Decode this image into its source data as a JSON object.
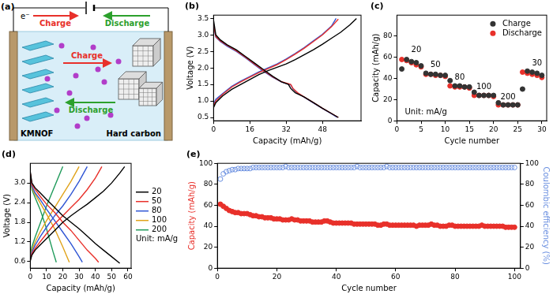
{
  "diagram": {
    "title": "(a)",
    "electron": "e⁻",
    "top_arrows": [
      "Charge",
      "Discharge"
    ],
    "ion_arrows": [
      "Charge",
      "Discharge"
    ],
    "left_electrode": "KMNOF",
    "right_electrode": "Hard carbon"
  },
  "chart_data": [
    {
      "type": "line",
      "title": "(b)",
      "xlabel": "Capacity (mAh/g)",
      "ylabel": "Voltage (V)",
      "xlim": [
        0,
        65
      ],
      "xticks": [
        0,
        16,
        32,
        48
      ],
      "ylim": [
        0.4,
        3.6
      ],
      "yticks": [
        0.5,
        {
          "value": 1,
          "label": "1.0"
        },
        1.5,
        {
          "value": 2,
          "label": "2.0"
        },
        2.5,
        {
          "value": 3,
          "label": "3.0"
        },
        3.5
      ],
      "grid": false,
      "series": [
        {
          "color": "#000000",
          "x": [
            0,
            1,
            4,
            8,
            12,
            16,
            20,
            24,
            28,
            32,
            36,
            40,
            44,
            48,
            52,
            56,
            60,
            63,
            null,
            0,
            1,
            3,
            6,
            10,
            14,
            18,
            22,
            26,
            30,
            33,
            34,
            36,
            40,
            44,
            48,
            52,
            55
          ],
          "values": [
            0.8,
            0.95,
            1.15,
            1.35,
            1.5,
            1.65,
            1.8,
            1.92,
            2.02,
            2.12,
            2.25,
            2.4,
            2.55,
            2.72,
            2.9,
            3.08,
            3.3,
            3.5,
            null,
            3.45,
            3.0,
            2.85,
            2.7,
            2.55,
            2.35,
            2.15,
            1.95,
            1.75,
            1.58,
            1.5,
            1.38,
            1.25,
            1.12,
            0.95,
            0.78,
            0.62,
            0.5
          ]
        },
        {
          "color": "#e8302a",
          "x": [
            0,
            1,
            4,
            8,
            12,
            16,
            20,
            24,
            28,
            32,
            36,
            40,
            44,
            48,
            52,
            55,
            null,
            0,
            1,
            3,
            6,
            10,
            14,
            18,
            22,
            26,
            30,
            34,
            35,
            37,
            40,
            44,
            48,
            52,
            55
          ],
          "values": [
            0.85,
            1.0,
            1.2,
            1.42,
            1.58,
            1.72,
            1.86,
            1.98,
            2.1,
            2.25,
            2.42,
            2.6,
            2.8,
            3.0,
            3.25,
            3.48,
            null,
            3.3,
            2.95,
            2.82,
            2.68,
            2.52,
            2.33,
            2.12,
            1.92,
            1.73,
            1.58,
            1.5,
            1.38,
            1.25,
            1.12,
            0.95,
            0.78,
            0.62,
            0.5
          ]
        },
        {
          "color": "#2f55d4",
          "x": [
            0,
            1,
            4,
            8,
            12,
            16,
            20,
            24,
            28,
            32,
            36,
            40,
            44,
            48,
            52,
            54,
            null,
            0,
            1,
            3,
            6,
            10,
            14,
            18,
            22,
            26,
            30,
            34,
            35,
            37,
            40,
            44,
            48,
            52,
            54.5
          ],
          "values": [
            0.9,
            1.05,
            1.22,
            1.44,
            1.6,
            1.74,
            1.88,
            2.0,
            2.12,
            2.27,
            2.44,
            2.62,
            2.82,
            3.02,
            3.27,
            3.5,
            null,
            3.28,
            2.93,
            2.8,
            2.66,
            2.5,
            2.31,
            2.1,
            1.9,
            1.72,
            1.57,
            1.49,
            1.37,
            1.24,
            1.11,
            0.94,
            0.77,
            0.61,
            0.5
          ]
        }
      ]
    },
    {
      "type": "scatter",
      "title": "(c)",
      "xlabel": "Cycle number",
      "ylabel": "Capacity (mAh/g)",
      "x": [
        1,
        2,
        3,
        4,
        5,
        6,
        7,
        8,
        9,
        10,
        11,
        12,
        13,
        14,
        15,
        16,
        17,
        18,
        19,
        20,
        21,
        22,
        23,
        24,
        25,
        26,
        27,
        28,
        29,
        30
      ],
      "xlim": [
        0,
        31
      ],
      "xticks": [
        0,
        5,
        10,
        15,
        20,
        25,
        30
      ],
      "ylim": [
        0,
        100
      ],
      "yticks": [
        0,
        20,
        40,
        60,
        80
      ],
      "grid": false,
      "legend": "upper right",
      "marker": "circle",
      "series": [
        {
          "name": "Charge",
          "color": "#333333",
          "values": [
            49,
            58,
            56,
            55,
            52,
            45,
            44,
            44,
            43,
            43,
            38,
            33,
            33,
            32,
            32,
            27,
            24,
            24,
            24,
            24,
            17,
            15,
            15,
            15,
            15,
            30,
            47,
            46,
            45,
            43
          ]
        },
        {
          "name": "Discharge",
          "color": "#e8302a",
          "values": [
            58,
            57,
            55,
            53,
            51,
            44,
            44,
            43,
            43,
            42,
            33,
            32,
            32,
            32,
            31,
            24,
            24,
            24,
            24,
            23,
            15,
            15,
            15,
            15,
            15,
            46,
            45,
            44,
            43,
            41
          ]
        }
      ],
      "annotations": [
        {
          "text": "20",
          "x": 4,
          "y": 67
        },
        {
          "text": "50",
          "x": 8,
          "y": 53
        },
        {
          "text": "80",
          "x": 13,
          "y": 41
        },
        {
          "text": "100",
          "x": 18,
          "y": 32
        },
        {
          "text": "200",
          "x": 23,
          "y": 22
        },
        {
          "text": "30",
          "x": 29,
          "y": 54
        },
        {
          "text": "Unit: mA/g",
          "x": 6,
          "y": 8
        }
      ]
    },
    {
      "type": "line",
      "title": "(d)",
      "xlabel": "Capacity (mAh/g)",
      "ylabel": "Voltage (V)",
      "xlim": [
        0,
        62
      ],
      "xticks": [
        0,
        10,
        20,
        30,
        40,
        50,
        60
      ],
      "ylim": [
        0.4,
        3.6
      ],
      "yticks": [
        0.6,
        1.2,
        1.8,
        2.4,
        {
          "value": 3,
          "label": "3.0"
        }
      ],
      "grid": false,
      "legend": "right",
      "series": [
        {
          "name": "20",
          "color": "#000000",
          "x": [
            0,
            1,
            3,
            6,
            10,
            15,
            20,
            25,
            30,
            35,
            40,
            45,
            50,
            55,
            58,
            null,
            0,
            1,
            3,
            6,
            10,
            15,
            20,
            25,
            30,
            35,
            40,
            45,
            50,
            55
          ],
          "values": [
            0.62,
            0.8,
            0.95,
            1.1,
            1.3,
            1.55,
            1.8,
            2.0,
            2.18,
            2.35,
            2.55,
            2.75,
            3.0,
            3.3,
            3.5,
            null,
            3.35,
            3.0,
            2.85,
            2.7,
            2.5,
            2.25,
            2.0,
            1.8,
            1.6,
            1.38,
            1.15,
            0.95,
            0.75,
            0.55
          ]
        },
        {
          "name": "50",
          "color": "#e8302a",
          "x": [
            0,
            1,
            3,
            6,
            10,
            15,
            20,
            25,
            30,
            35,
            40,
            44,
            null,
            0,
            1,
            3,
            6,
            10,
            15,
            20,
            25,
            30,
            35,
            40,
            42
          ],
          "values": [
            0.65,
            0.85,
            1.0,
            1.2,
            1.45,
            1.75,
            2.0,
            2.25,
            2.5,
            2.8,
            3.15,
            3.5,
            null,
            3.3,
            2.95,
            2.8,
            2.6,
            2.35,
            2.1,
            1.8,
            1.55,
            1.25,
            0.95,
            0.7,
            0.58
          ]
        },
        {
          "name": "80",
          "color": "#2f55d4",
          "x": [
            0,
            1,
            3,
            6,
            10,
            15,
            20,
            25,
            30,
            35,
            null,
            0,
            1,
            3,
            6,
            10,
            15,
            20,
            25,
            30,
            32
          ],
          "values": [
            0.7,
            0.9,
            1.1,
            1.35,
            1.65,
            2.0,
            2.3,
            2.65,
            3.05,
            3.5,
            null,
            3.3,
            2.9,
            2.7,
            2.5,
            2.2,
            1.85,
            1.5,
            1.15,
            0.75,
            0.58
          ]
        },
        {
          "name": "100",
          "color": "#e0a31a",
          "x": [
            0,
            1,
            3,
            6,
            10,
            15,
            20,
            25,
            30,
            null,
            0,
            1,
            3,
            6,
            10,
            15,
            20,
            24
          ],
          "values": [
            0.75,
            0.95,
            1.2,
            1.5,
            1.85,
            2.25,
            2.65,
            3.05,
            3.5,
            null,
            3.3,
            2.85,
            2.65,
            2.4,
            2.05,
            1.6,
            1.05,
            0.58
          ]
        },
        {
          "name": "200",
          "color": "#1f9a5a",
          "x": [
            0,
            1,
            3,
            6,
            10,
            15,
            20,
            null,
            0,
            1,
            3,
            6,
            10,
            14,
            16
          ],
          "values": [
            0.8,
            1.05,
            1.35,
            1.75,
            2.3,
            2.9,
            3.5,
            null,
            3.25,
            2.8,
            2.55,
            2.2,
            1.6,
            0.9,
            0.58
          ]
        }
      ],
      "annotations": [
        {
          "text": "Unit: mA/g"
        }
      ]
    },
    {
      "type": "scatter",
      "title": "(e)",
      "xlabel": "Cycle number",
      "ylabel": "Capacity (mAh/g)",
      "y2label": "Coulombic efficiency (%)",
      "x": [
        1,
        2,
        3,
        4,
        5,
        6,
        7,
        8,
        9,
        10,
        11,
        12,
        13,
        14,
        15,
        16,
        17,
        18,
        19,
        20,
        21,
        22,
        23,
        24,
        25,
        26,
        27,
        28,
        29,
        30,
        31,
        32,
        33,
        34,
        35,
        36,
        37,
        38,
        39,
        40,
        41,
        42,
        43,
        44,
        45,
        46,
        47,
        48,
        49,
        50,
        51,
        52,
        53,
        54,
        55,
        56,
        57,
        58,
        59,
        60,
        61,
        62,
        63,
        64,
        65,
        66,
        67,
        68,
        69,
        70,
        71,
        72,
        73,
        74,
        75,
        76,
        77,
        78,
        79,
        80,
        81,
        82,
        83,
        84,
        85,
        86,
        87,
        88,
        89,
        90,
        91,
        92,
        93,
        94,
        95,
        96,
        97,
        98,
        99,
        100
      ],
      "xlim": [
        0,
        102
      ],
      "xticks": [
        0,
        20,
        40,
        60,
        80,
        100
      ],
      "ylim": [
        0,
        100
      ],
      "yticks": [
        0,
        20,
        40,
        60,
        80,
        100
      ],
      "y2lim": [
        0,
        100
      ],
      "y2ticks": [
        0,
        20,
        40,
        60,
        80,
        100
      ],
      "grid": false,
      "series": [
        {
          "color": "#e8302a",
          "marker": "circle",
          "values": [
            61,
            59,
            57,
            55,
            54,
            53,
            53,
            52,
            52,
            52,
            51,
            50,
            50,
            49,
            49,
            48,
            48,
            48,
            47,
            47,
            47,
            46,
            46,
            46,
            47,
            46,
            46,
            45,
            45,
            45,
            45,
            44,
            44,
            44,
            44,
            45,
            45,
            44,
            43,
            43,
            43,
            43,
            43,
            43,
            43,
            42,
            42,
            42,
            42,
            42,
            42,
            42,
            42,
            41,
            41,
            42,
            42,
            41,
            41,
            41,
            41,
            41,
            41,
            41,
            41,
            41,
            40,
            41,
            41,
            41,
            41,
            42,
            41,
            41,
            40,
            40,
            40,
            41,
            41,
            40,
            40,
            40,
            40,
            40,
            40,
            40,
            40,
            40,
            41,
            40,
            40,
            40,
            40,
            40,
            40,
            40,
            39,
            39,
            39,
            39
          ]
        },
        {
          "color": "#6a8fe0",
          "marker": "open circle",
          "axis": "y2",
          "values": [
            85,
            90,
            92,
            93,
            94,
            94,
            95,
            95,
            95,
            95,
            95,
            96,
            96,
            96,
            96,
            96,
            96,
            96,
            96,
            96,
            96,
            96,
            97,
            96,
            96,
            96,
            96,
            96,
            96,
            96,
            96,
            96,
            96,
            96,
            96,
            96,
            96,
            96,
            96,
            96,
            96,
            96,
            96,
            96,
            96,
            96,
            97,
            96,
            96,
            96,
            96,
            96,
            96,
            96,
            96,
            96,
            97,
            96,
            96,
            96,
            96,
            96,
            96,
            96,
            96,
            96,
            96,
            96,
            96,
            96,
            96,
            96,
            96,
            96,
            96,
            96,
            96,
            96,
            96,
            96,
            96,
            96,
            96,
            96,
            96,
            96,
            96,
            96,
            96,
            96,
            96,
            96,
            96,
            96,
            96,
            96,
            96,
            96,
            96,
            96
          ]
        }
      ]
    }
  ]
}
